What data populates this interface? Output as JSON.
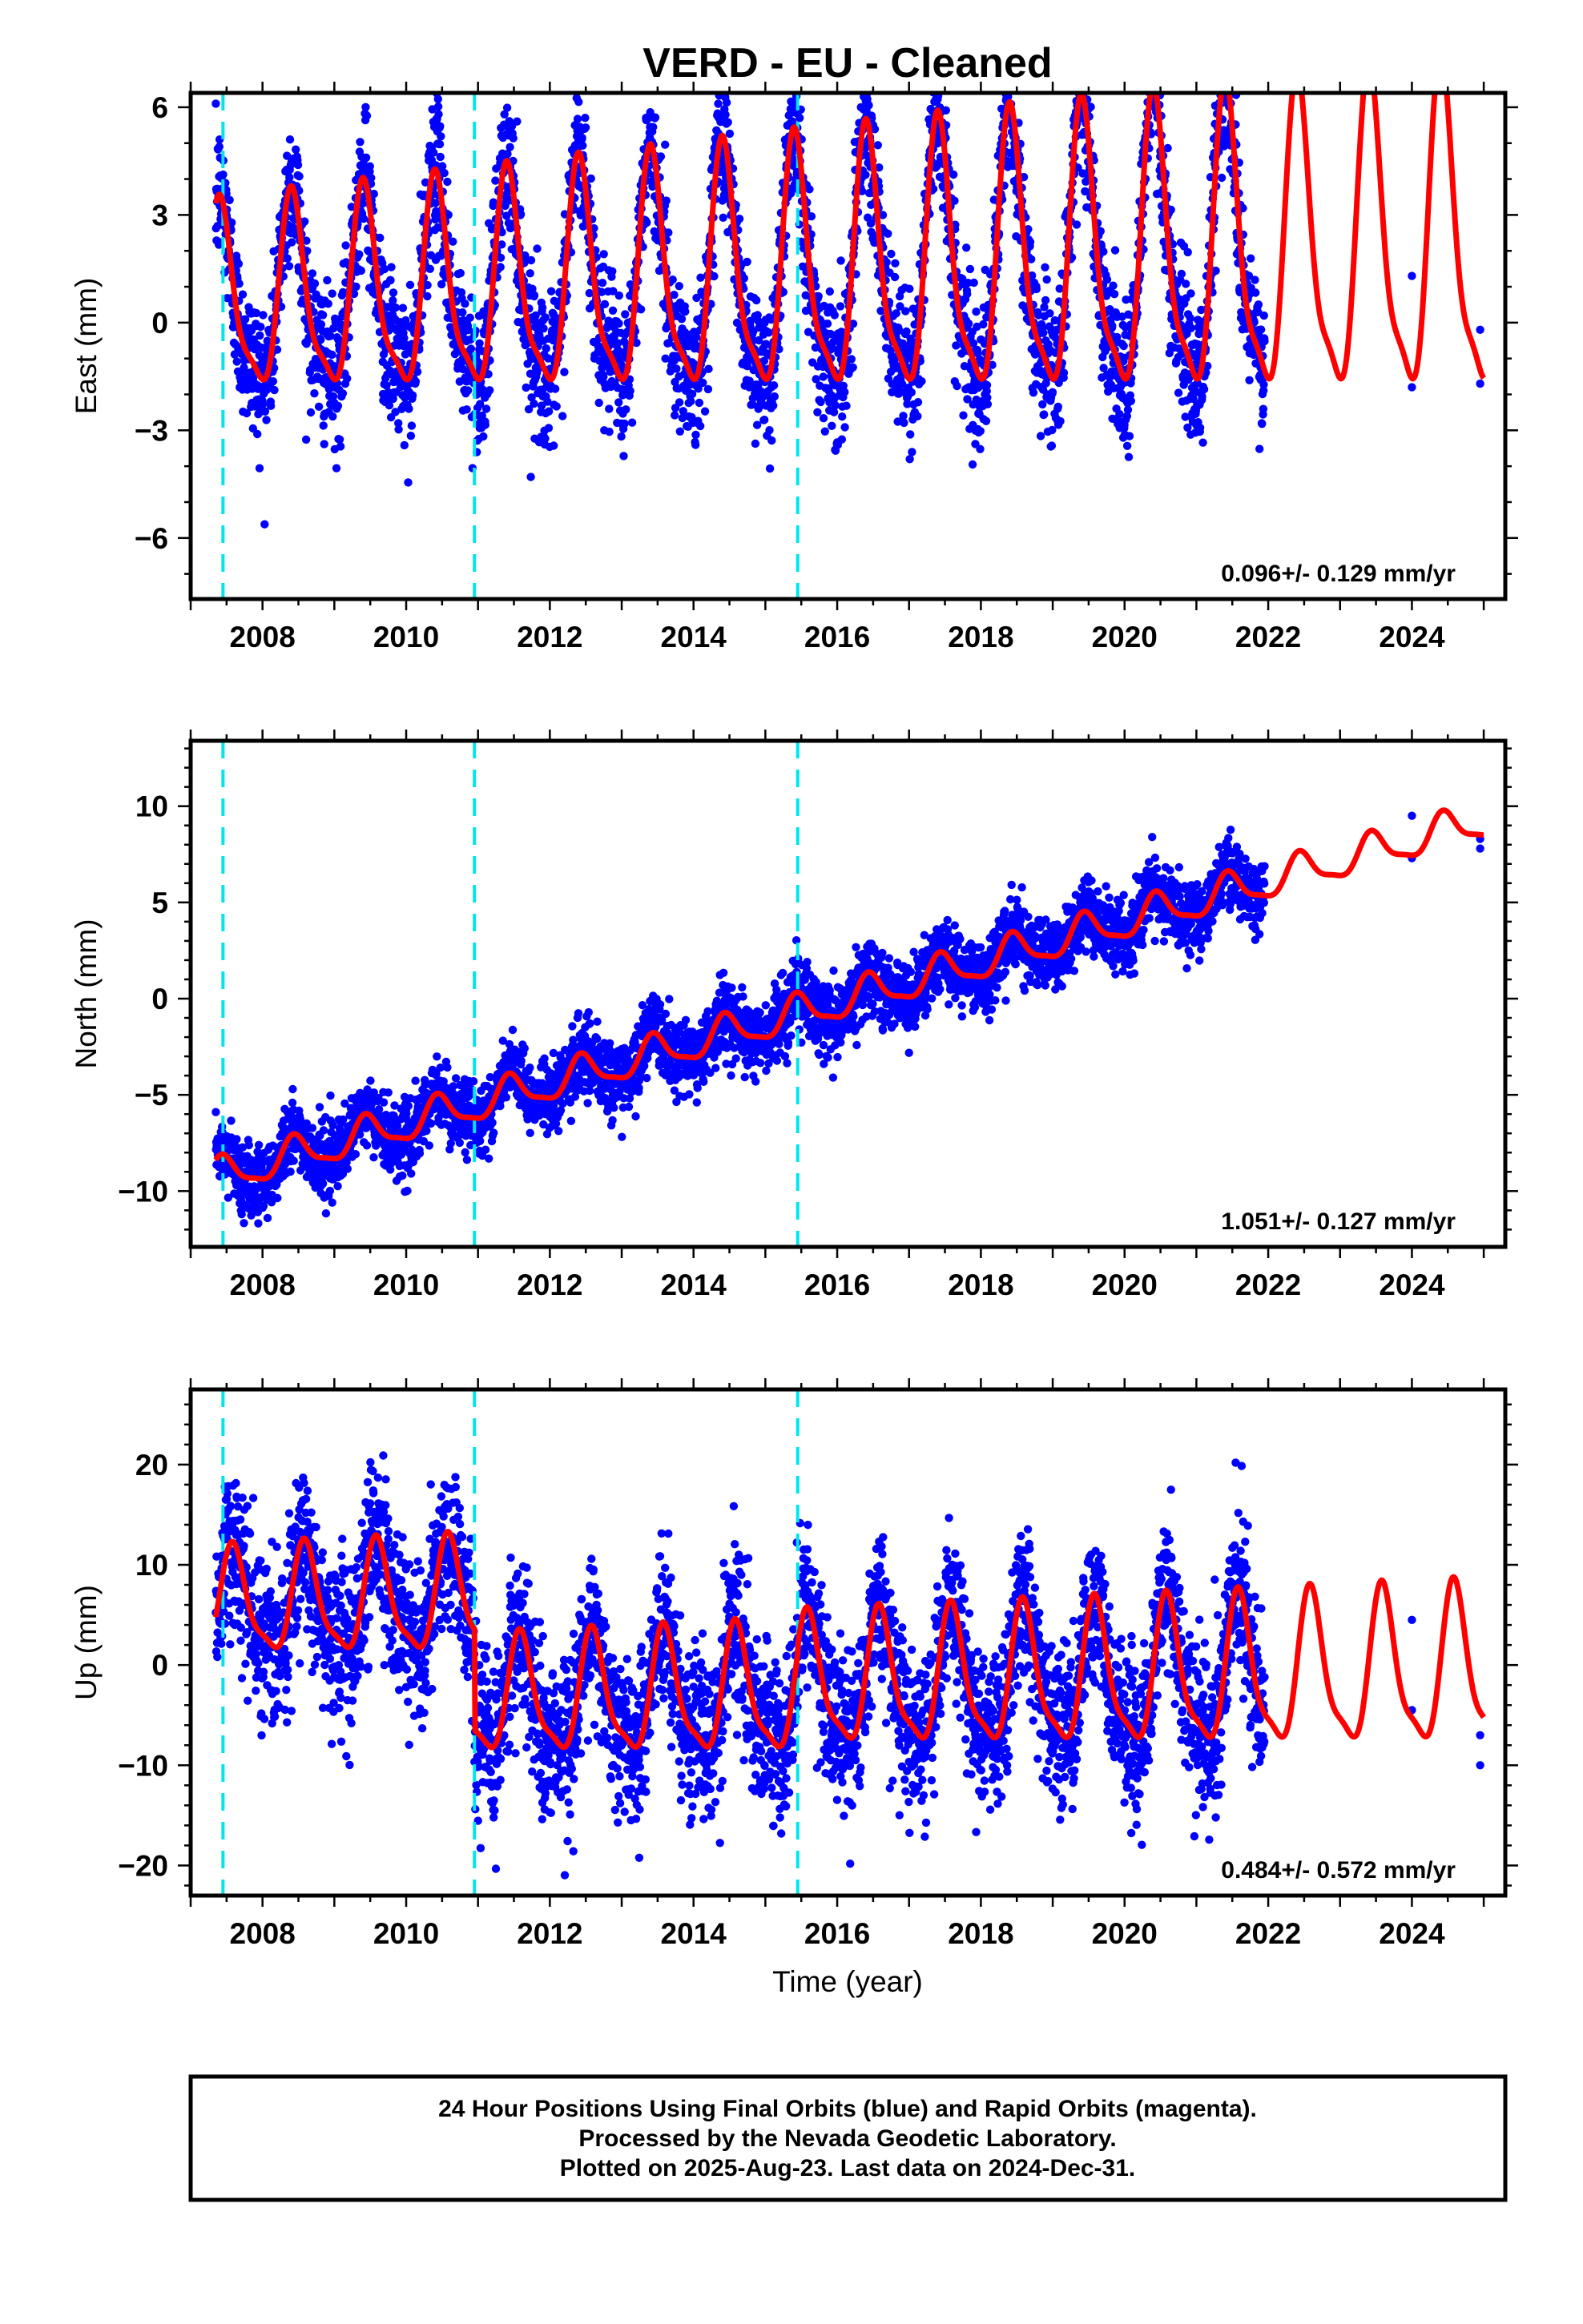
{
  "title": "VERD  - EU - Cleaned",
  "xlabel": "Time (year)",
  "footer": {
    "line1": "24 Hour Positions Using Final Orbits (blue) and Rapid Orbits (magenta).",
    "line2": "Processed by the Nevada Geodetic Laboratory.",
    "line3": "Plotted on 2025-Aug-23. Last data on 2024-Dec-31."
  },
  "colors": {
    "data": "#0000ff",
    "model": "#ff0000",
    "offset": "#00e5ee",
    "frame": "#000000"
  },
  "chart_data": [
    {
      "type": "scatter",
      "ylabel": "East (mm)",
      "rate_label": "0.096+/- 0.129 mm/yr",
      "xlim": [
        2007.0,
        2025.3
      ],
      "ylim": [
        -7.7,
        6.4
      ],
      "x_ticks": [
        2008,
        2010,
        2012,
        2014,
        2016,
        2018,
        2020,
        2022,
        2024
      ],
      "y_ticks": [
        -6,
        -3,
        0,
        3,
        6
      ],
      "y_tick_labels": [
        "−6",
        "−3",
        "0",
        "3",
        "6"
      ],
      "offsets": [
        2007.45,
        2010.95,
        2015.45
      ],
      "data_start": 2007.35,
      "data_end": 2021.95,
      "sparse_points": [
        [
          2024.0,
          1.3
        ],
        [
          2024.0,
          -1.8
        ],
        [
          2024.95,
          -0.2
        ],
        [
          2024.95,
          -1.7
        ]
      ],
      "model": {
        "start": 2007.35,
        "end": 2025.0,
        "segments": [
          [
            2007.35,
            2025.0,
            0.5
          ]
        ],
        "rate": 0.096,
        "annual_amp": 2.7,
        "amp_growth": 0.045,
        "peak_phase": 0.42,
        "scatter_sd": 1.0
      }
    },
    {
      "type": "scatter",
      "ylabel": "North (mm)",
      "rate_label": "1.051+/- 0.127 mm/yr",
      "xlim": [
        2007.0,
        2025.3
      ],
      "ylim": [
        -12.9,
        13.4
      ],
      "x_ticks": [
        2008,
        2010,
        2012,
        2014,
        2016,
        2018,
        2020,
        2022,
        2024
      ],
      "y_ticks": [
        -10,
        -5,
        0,
        5,
        10
      ],
      "y_tick_labels": [
        "−10",
        "−5",
        "0",
        "5",
        "10"
      ],
      "offsets": [
        2007.45,
        2010.95,
        2015.45
      ],
      "data_start": 2007.35,
      "data_end": 2021.95,
      "sparse_points": [
        [
          2024.0,
          9.5
        ],
        [
          2024.0,
          7.3
        ],
        [
          2024.95,
          8.3
        ],
        [
          2024.95,
          7.8
        ]
      ],
      "model": {
        "start": 2007.35,
        "end": 2025.0,
        "segments": [
          [
            2007.35,
            2025.0,
            -9.3
          ]
        ],
        "rate": 1.051,
        "annual_amp": 1.0,
        "amp_growth": 0.0,
        "peak_phase": 0.45,
        "scatter_sd": 0.9
      }
    },
    {
      "type": "scatter",
      "ylabel": "Up (mm)",
      "rate_label": "0.484+/- 0.572 mm/yr",
      "xlim": [
        2007.0,
        2025.3
      ],
      "ylim": [
        -23.0,
        27.5
      ],
      "x_ticks": [
        2008,
        2010,
        2012,
        2014,
        2016,
        2018,
        2020,
        2022,
        2024
      ],
      "y_ticks": [
        -20,
        -10,
        0,
        10,
        20
      ],
      "y_tick_labels": [
        "−20",
        "−10",
        "0",
        "10",
        "20"
      ],
      "offsets": [
        2007.45,
        2010.95,
        2015.45
      ],
      "data_start": 2007.35,
      "data_end": 2021.95,
      "sparse_points": [
        [
          2024.0,
          4.5
        ],
        [
          2024.0,
          -4.5
        ],
        [
          2024.95,
          -7.0
        ],
        [
          2024.95,
          -10.0
        ]
      ],
      "model": {
        "start": 2007.35,
        "end": 2025.0,
        "segments": [
          [
            2007.35,
            2010.95,
            6.0
          ],
          [
            2010.95,
            2015.45,
            -3.5
          ],
          [
            2015.45,
            2025.0,
            -2.0
          ]
        ],
        "rate": 0.484,
        "annual_amp": 5.5,
        "amp_growth": 0.03,
        "peak_phase": 0.6,
        "scatter_sd": 4.0
      }
    }
  ]
}
